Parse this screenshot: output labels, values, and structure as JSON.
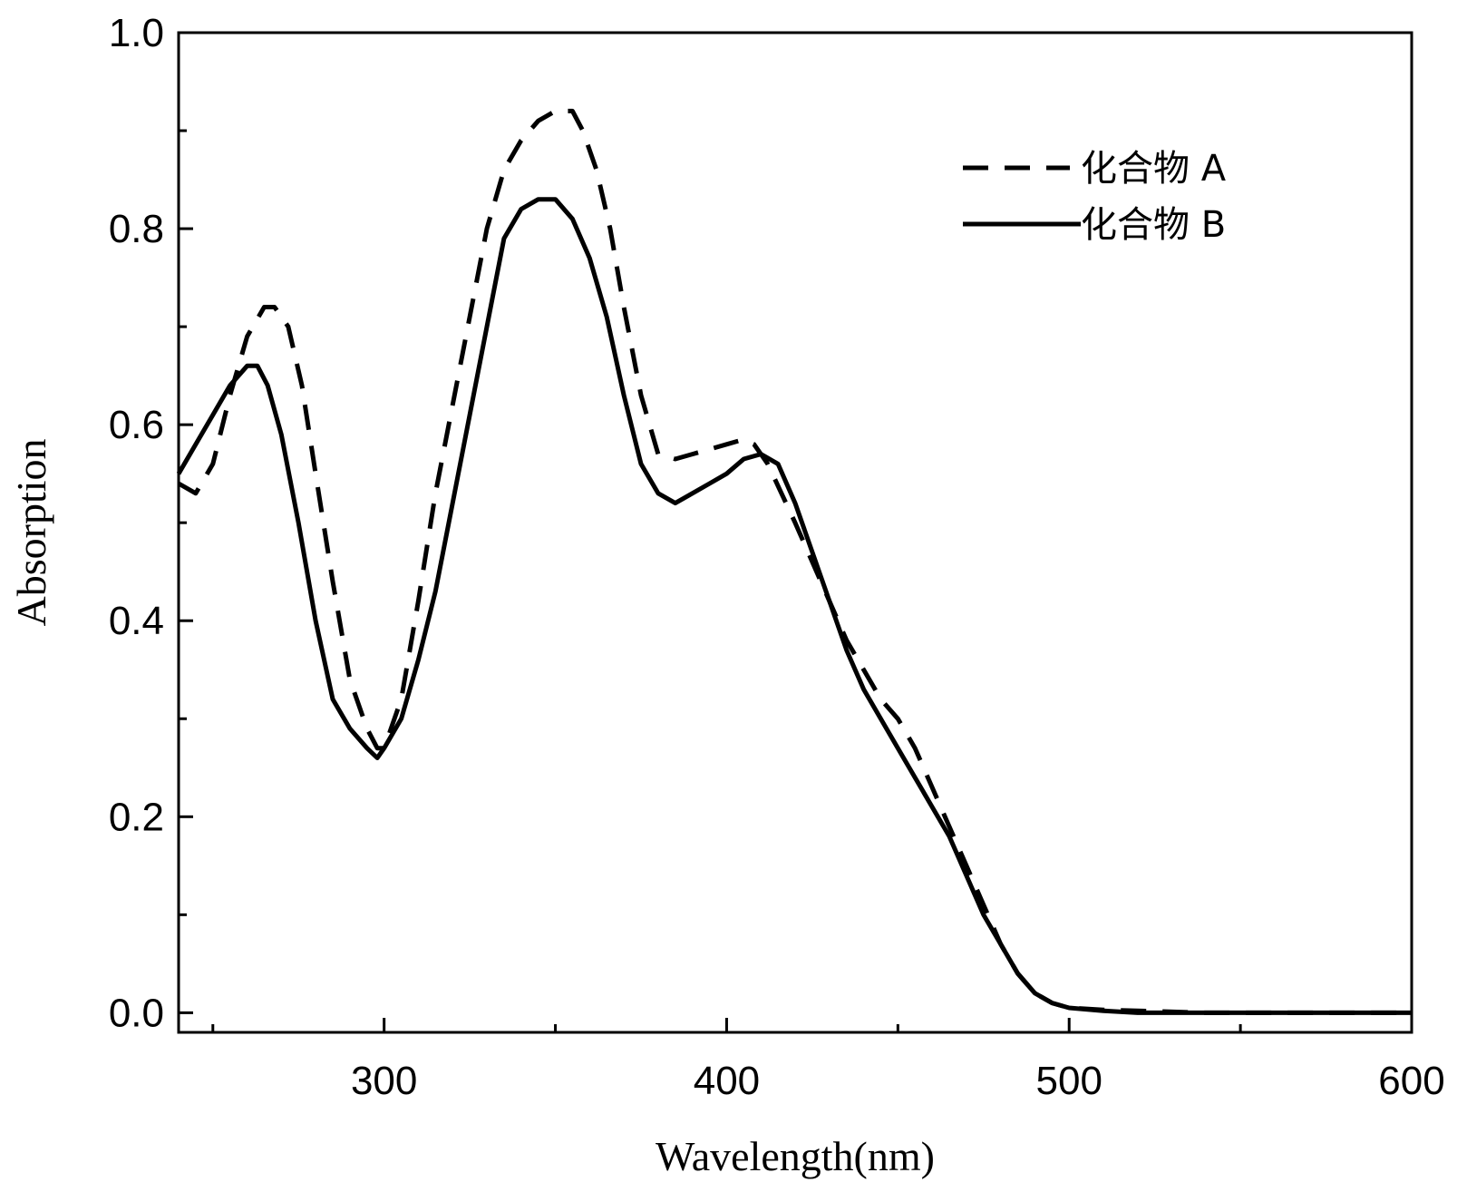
{
  "chart_data": {
    "type": "line",
    "title": "",
    "xlabel": "Wavelength(nm)",
    "ylabel": "Absorption",
    "xlim": [
      240,
      600
    ],
    "ylim": [
      -0.02,
      1.0
    ],
    "x_ticks": [
      300,
      400,
      500,
      600
    ],
    "y_ticks": [
      0.0,
      0.2,
      0.4,
      0.6,
      0.8,
      1.0
    ],
    "x_tick_labels": [
      "300",
      "400",
      "500",
      "600"
    ],
    "y_tick_labels": [
      "0.0",
      "0.2",
      "0.4",
      "0.6",
      "0.8",
      "1.0"
    ],
    "grid": false,
    "legend_position": "top-right",
    "series": [
      {
        "name": "化合物 A",
        "style": "dashed",
        "color": "#000000",
        "x": [
          240,
          245,
          250,
          255,
          260,
          265,
          268,
          272,
          276,
          280,
          285,
          290,
          295,
          298,
          300,
          305,
          310,
          315,
          320,
          325,
          330,
          335,
          340,
          345,
          350,
          355,
          358,
          362,
          366,
          370,
          375,
          380,
          385,
          390,
          395,
          400,
          405,
          408,
          412,
          416,
          420,
          425,
          430,
          435,
          440,
          445,
          450,
          455,
          460,
          465,
          470,
          475,
          480,
          485,
          490,
          495,
          500,
          510,
          520,
          540,
          560,
          580,
          600
        ],
        "y": [
          0.54,
          0.53,
          0.56,
          0.63,
          0.69,
          0.72,
          0.72,
          0.7,
          0.64,
          0.55,
          0.44,
          0.34,
          0.29,
          0.27,
          0.27,
          0.32,
          0.42,
          0.53,
          0.62,
          0.71,
          0.8,
          0.86,
          0.89,
          0.91,
          0.92,
          0.92,
          0.9,
          0.86,
          0.8,
          0.72,
          0.63,
          0.57,
          0.565,
          0.57,
          0.575,
          0.58,
          0.585,
          0.58,
          0.56,
          0.53,
          0.5,
          0.46,
          0.42,
          0.38,
          0.35,
          0.32,
          0.3,
          0.27,
          0.23,
          0.19,
          0.15,
          0.11,
          0.07,
          0.04,
          0.02,
          0.01,
          0.005,
          0.003,
          0.002,
          0.0,
          0.0,
          0.0,
          0.0
        ]
      },
      {
        "name": "化合物 B",
        "style": "solid",
        "color": "#000000",
        "x": [
          240,
          245,
          250,
          255,
          260,
          263,
          266,
          270,
          275,
          280,
          285,
          290,
          295,
          298,
          300,
          305,
          310,
          315,
          320,
          325,
          330,
          335,
          340,
          345,
          350,
          355,
          360,
          365,
          370,
          375,
          380,
          385,
          390,
          395,
          400,
          405,
          410,
          415,
          420,
          425,
          430,
          435,
          440,
          445,
          450,
          455,
          460,
          465,
          470,
          475,
          480,
          485,
          490,
          495,
          500,
          510,
          520,
          540,
          560,
          580,
          600
        ],
        "y": [
          0.55,
          0.58,
          0.61,
          0.64,
          0.66,
          0.66,
          0.64,
          0.59,
          0.5,
          0.4,
          0.32,
          0.29,
          0.27,
          0.26,
          0.27,
          0.3,
          0.36,
          0.43,
          0.52,
          0.61,
          0.7,
          0.79,
          0.82,
          0.83,
          0.83,
          0.81,
          0.77,
          0.71,
          0.63,
          0.56,
          0.53,
          0.52,
          0.53,
          0.54,
          0.55,
          0.565,
          0.57,
          0.56,
          0.52,
          0.47,
          0.42,
          0.37,
          0.33,
          0.3,
          0.27,
          0.24,
          0.21,
          0.18,
          0.14,
          0.1,
          0.07,
          0.04,
          0.02,
          0.01,
          0.005,
          0.002,
          0.0,
          0.0,
          0.0,
          0.0,
          0.0
        ]
      }
    ]
  }
}
